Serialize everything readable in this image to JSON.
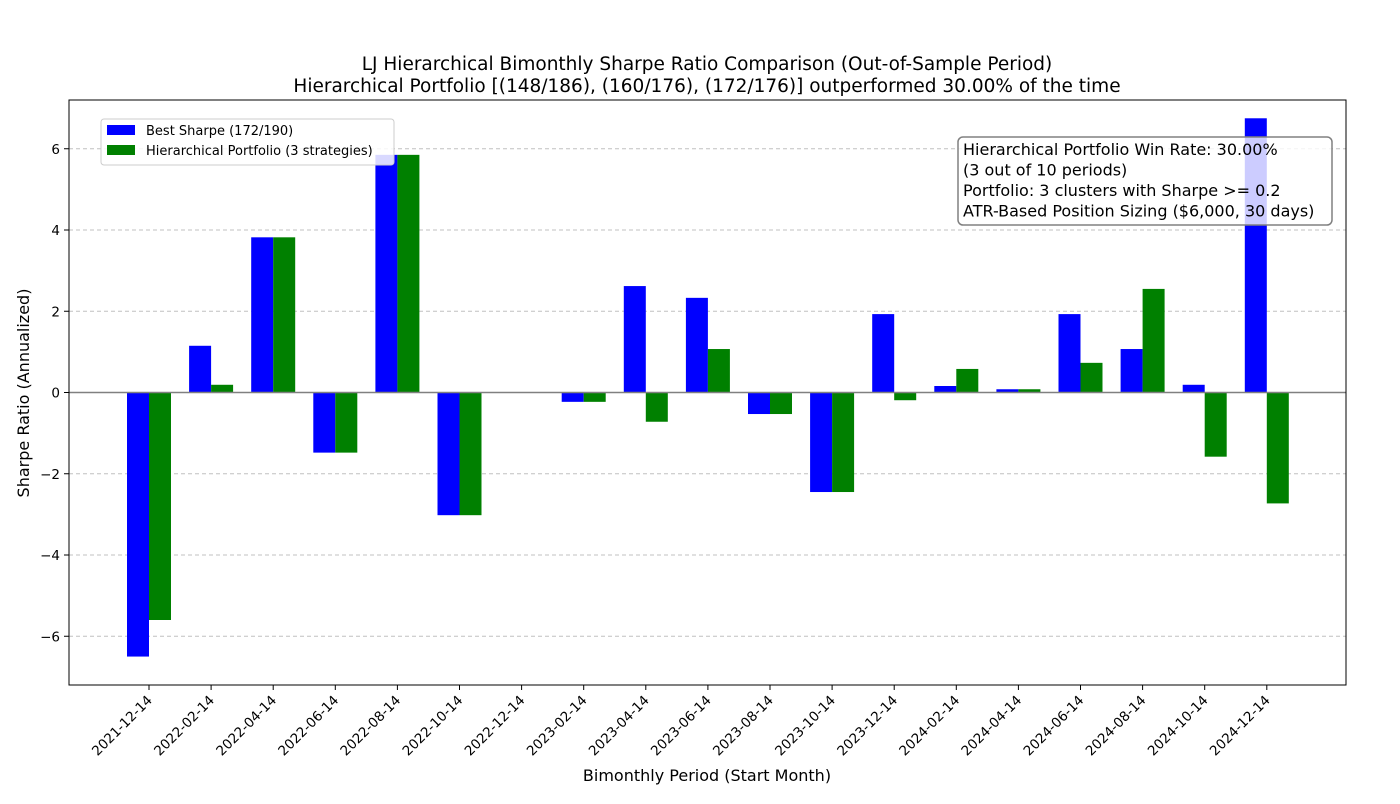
{
  "chart_data": {
    "type": "bar",
    "title": "LJ Hierarchical Bimonthly Sharpe Ratio Comparison (Out-of-Sample Period)",
    "subtitle": "Hierarchical Portfolio [(148/186), (160/176), (172/176)] outperformed 30.00% of the time",
    "xlabel": "Bimonthly Period (Start Month)",
    "ylabel": "Sharpe Ratio (Annualized)",
    "ylim": [
      -7.2,
      7.2
    ],
    "yticks": [
      -6,
      -4,
      -2,
      0,
      2,
      4,
      6
    ],
    "grid": true,
    "legend_position": "upper-left",
    "categories": [
      "2021-12-14",
      "2022-02-14",
      "2022-04-14",
      "2022-06-14",
      "2022-08-14",
      "2022-10-14",
      "2022-12-14",
      "2023-02-14",
      "2023-04-14",
      "2023-06-14",
      "2023-08-14",
      "2023-10-14",
      "2023-12-14",
      "2024-02-14",
      "2024-04-14",
      "2024-06-14",
      "2024-08-14",
      "2024-10-14",
      "2024-12-14"
    ],
    "series": [
      {
        "name": "Best Sharpe (172/190)",
        "color": "#0000ff",
        "values": [
          -6.5,
          1.15,
          3.82,
          -1.48,
          5.85,
          -3.02,
          0.0,
          -0.23,
          2.62,
          2.33,
          -0.53,
          -2.45,
          1.93,
          0.16,
          0.08,
          1.93,
          1.07,
          0.19,
          6.75
        ]
      },
      {
        "name": "Hierarchical Portfolio (3 strategies)",
        "color": "#008000",
        "values": [
          -5.6,
          0.19,
          3.82,
          -1.48,
          5.85,
          -3.02,
          0.0,
          -0.23,
          -0.72,
          1.07,
          -0.53,
          -2.45,
          -0.19,
          0.58,
          0.08,
          0.73,
          2.55,
          -1.58,
          -2.73
        ]
      }
    ],
    "annotation": {
      "lines": [
        "Hierarchical Portfolio Win Rate: 30.00%",
        "(3 out of 10 periods)",
        "Portfolio: 3 clusters with Sharpe >= 0.2",
        "ATR-Based Position Sizing ($6,000, 30 days)"
      ]
    }
  }
}
